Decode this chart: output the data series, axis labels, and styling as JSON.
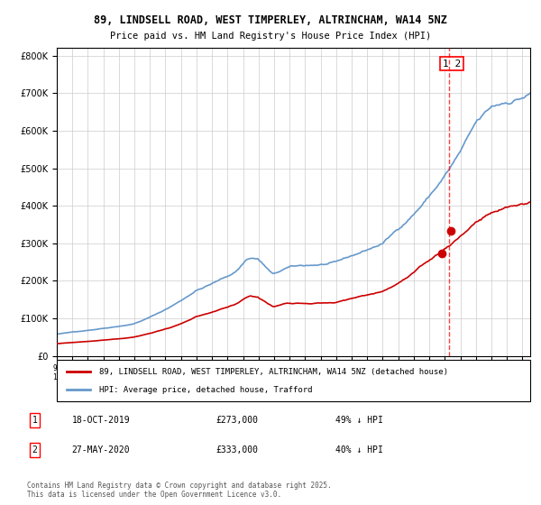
{
  "title_line1": "89, LINDSELL ROAD, WEST TIMPERLEY, ALTRINCHAM, WA14 5NZ",
  "title_line2": "Price paid vs. HM Land Registry's House Price Index (HPI)",
  "legend_red": "89, LINDSELL ROAD, WEST TIMPERLEY, ALTRINCHAM, WA14 5NZ (detached house)",
  "legend_blue": "HPI: Average price, detached house, Trafford",
  "footnote": "Contains HM Land Registry data © Crown copyright and database right 2025.\nThis data is licensed under the Open Government Licence v3.0.",
  "annotation1_date": "18-OCT-2019",
  "annotation1_price": "£273,000",
  "annotation1_hpi": "49% ↓ HPI",
  "annotation2_date": "27-MAY-2020",
  "annotation2_price": "£333,000",
  "annotation2_hpi": "40% ↓ HPI",
  "vline_x": 2020.3,
  "sale1_x": 2019.8,
  "sale1_y": 273000,
  "sale2_x": 2020.4,
  "sale2_y": 333000,
  "ylim": [
    0,
    820000
  ],
  "xlim_start": 1995,
  "xlim_end": 2025.5,
  "red_color": "#cc0000",
  "blue_color": "#6699cc",
  "background_color": "#ffffff",
  "grid_color": "#cccccc"
}
